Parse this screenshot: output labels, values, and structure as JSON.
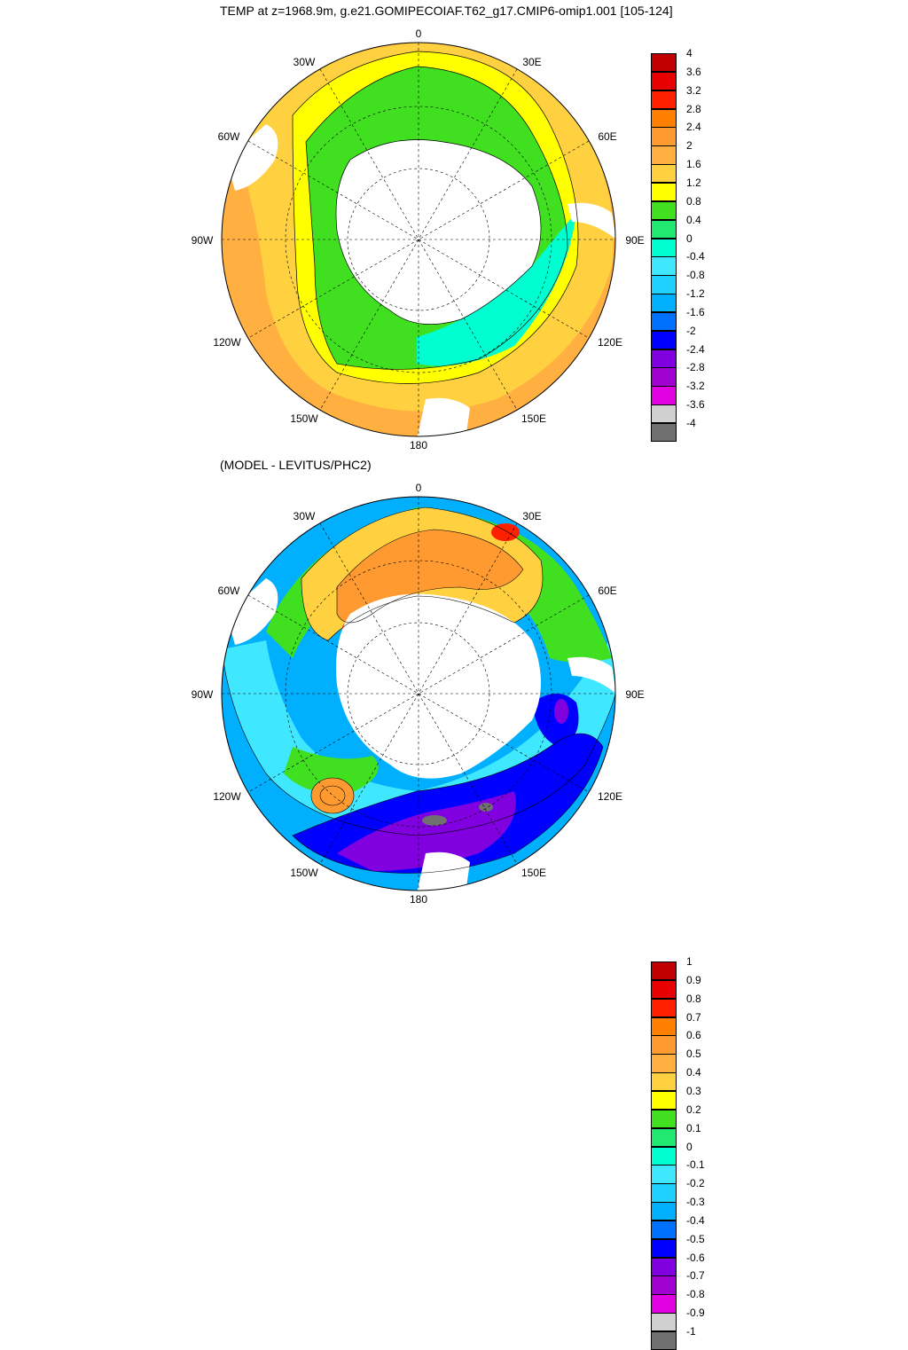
{
  "title_top": "TEMP at z=1968.9m, g.e21.GOMIPECOIAF.T62_g17.CMIP6-omip1.001 [105-124]",
  "title_bottom": "(MODEL - LEVITUS/PHC2)",
  "longitude_labels": [
    "0",
    "30E",
    "60E",
    "90E",
    "120E",
    "150E",
    "180",
    "150W",
    "120W",
    "90W",
    "60W",
    "30W"
  ],
  "colorbar_top": {
    "labels": [
      "4",
      "3.6",
      "3.2",
      "2.8",
      "2.4",
      "2",
      "1.6",
      "1.2",
      "0.8",
      "0.4",
      "0",
      "-0.4",
      "-0.8",
      "-1.2",
      "-1.6",
      "-2",
      "-2.4",
      "-2.8",
      "-3.2",
      "-3.6",
      "-4"
    ],
    "colors": [
      "#c00000",
      "#e80000",
      "#ff2000",
      "#ff8000",
      "#ff9a30",
      "#ffb040",
      "#ffd040",
      "#ffff00",
      "#40e020",
      "#20e870",
      "#00ffd0",
      "#40e8ff",
      "#20d0ff",
      "#00b0ff",
      "#0070ff",
      "#0000ff",
      "#8000e0",
      "#a000d0",
      "#e000e0",
      "#d0d0d0",
      "#707070"
    ]
  },
  "colorbar_bottom": {
    "labels": [
      "1",
      "0.9",
      "0.8",
      "0.7",
      "0.6",
      "0.5",
      "0.4",
      "0.3",
      "0.2",
      "0.1",
      "0",
      "-0.1",
      "-0.2",
      "-0.3",
      "-0.4",
      "-0.5",
      "-0.6",
      "-0.7",
      "-0.8",
      "-0.9",
      "-1"
    ],
    "colors": [
      "#c00000",
      "#e80000",
      "#ff2000",
      "#ff8000",
      "#ff9a30",
      "#ffb040",
      "#ffd040",
      "#ffff00",
      "#40e020",
      "#20e870",
      "#00ffd0",
      "#40e8ff",
      "#20d0ff",
      "#00b0ff",
      "#0070ff",
      "#0000ff",
      "#8000e0",
      "#a000d0",
      "#e000e0",
      "#d0d0d0",
      "#707070"
    ]
  }
}
